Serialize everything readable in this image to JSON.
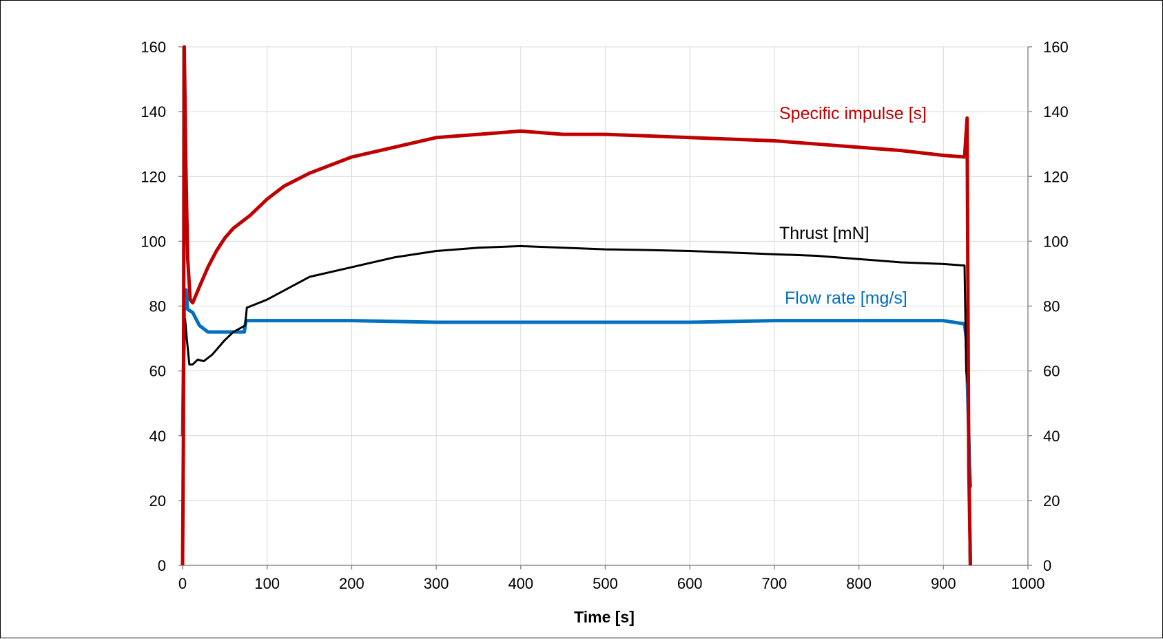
{
  "chart_data": {
    "type": "line",
    "title": "",
    "xlabel": "Time [s]",
    "ylabel": "",
    "xlim": [
      0,
      1000
    ],
    "ylim": [
      0,
      160
    ],
    "y2lim": [
      0,
      160
    ],
    "grid": true,
    "x_ticks": [
      "0",
      "100",
      "200",
      "300",
      "400",
      "500",
      "600",
      "700",
      "800",
      "900",
      "1000"
    ],
    "y_ticks": [
      "0",
      "20",
      "40",
      "60",
      "80",
      "100",
      "120",
      "140",
      "160"
    ],
    "y2_ticks": [
      "0",
      "20",
      "40",
      "60",
      "80",
      "100",
      "120",
      "140",
      "160"
    ],
    "series": [
      {
        "name": "Specific impulse [s]",
        "color": "#c00000",
        "points": [
          [
            0,
            0
          ],
          [
            1,
            40
          ],
          [
            2,
            160
          ],
          [
            4,
            122
          ],
          [
            6,
            95
          ],
          [
            9,
            82
          ],
          [
            12,
            81
          ],
          [
            20,
            86
          ],
          [
            30,
            92
          ],
          [
            40,
            97
          ],
          [
            50,
            101
          ],
          [
            60,
            104
          ],
          [
            70,
            106
          ],
          [
            80,
            108
          ],
          [
            100,
            113
          ],
          [
            120,
            117
          ],
          [
            150,
            121
          ],
          [
            200,
            126
          ],
          [
            250,
            129
          ],
          [
            300,
            132
          ],
          [
            350,
            133
          ],
          [
            400,
            134
          ],
          [
            450,
            133
          ],
          [
            500,
            133
          ],
          [
            550,
            132.5
          ],
          [
            600,
            132
          ],
          [
            650,
            131.5
          ],
          [
            700,
            131
          ],
          [
            750,
            130
          ],
          [
            800,
            129
          ],
          [
            850,
            128
          ],
          [
            900,
            126.5
          ],
          [
            925,
            126
          ],
          [
            928,
            138
          ],
          [
            930,
            30
          ],
          [
            932,
            0
          ]
        ]
      },
      {
        "name": "Thrust [mN]",
        "color": "#000000",
        "points": [
          [
            0,
            0
          ],
          [
            1,
            50
          ],
          [
            3,
            76
          ],
          [
            5,
            70
          ],
          [
            8,
            62
          ],
          [
            12,
            62
          ],
          [
            18,
            63.5
          ],
          [
            25,
            63
          ],
          [
            35,
            65
          ],
          [
            50,
            69.5
          ],
          [
            60,
            72
          ],
          [
            74,
            74
          ],
          [
            76,
            79.5
          ],
          [
            100,
            82
          ],
          [
            150,
            89
          ],
          [
            200,
            92
          ],
          [
            250,
            95
          ],
          [
            300,
            97
          ],
          [
            350,
            98
          ],
          [
            400,
            98.5
          ],
          [
            450,
            98
          ],
          [
            500,
            97.5
          ],
          [
            550,
            97.3
          ],
          [
            600,
            97
          ],
          [
            650,
            96.5
          ],
          [
            700,
            96
          ],
          [
            750,
            95.5
          ],
          [
            800,
            94.5
          ],
          [
            850,
            93.5
          ],
          [
            900,
            93
          ],
          [
            925,
            92.5
          ],
          [
            927,
            60
          ],
          [
            929,
            55
          ],
          [
            931,
            0
          ]
        ]
      },
      {
        "name": "Flow rate [mg/s]",
        "color": "#0070c0",
        "points": [
          [
            0,
            40
          ],
          [
            2,
            80
          ],
          [
            4,
            85
          ],
          [
            6,
            79
          ],
          [
            12,
            78
          ],
          [
            20,
            74
          ],
          [
            30,
            72
          ],
          [
            40,
            72
          ],
          [
            60,
            72
          ],
          [
            73,
            72
          ],
          [
            75,
            75.5
          ],
          [
            100,
            75.5
          ],
          [
            200,
            75.5
          ],
          [
            300,
            75
          ],
          [
            400,
            75
          ],
          [
            500,
            75
          ],
          [
            600,
            75
          ],
          [
            700,
            75.5
          ],
          [
            800,
            75.5
          ],
          [
            900,
            75.5
          ],
          [
            925,
            74.5
          ],
          [
            927,
            70
          ],
          [
            931,
            30
          ],
          [
            932,
            24
          ]
        ]
      }
    ],
    "annotations": [
      "Specific impulse [s]",
      "Thrust [mN]",
      "Flow rate [mg/s]"
    ]
  }
}
